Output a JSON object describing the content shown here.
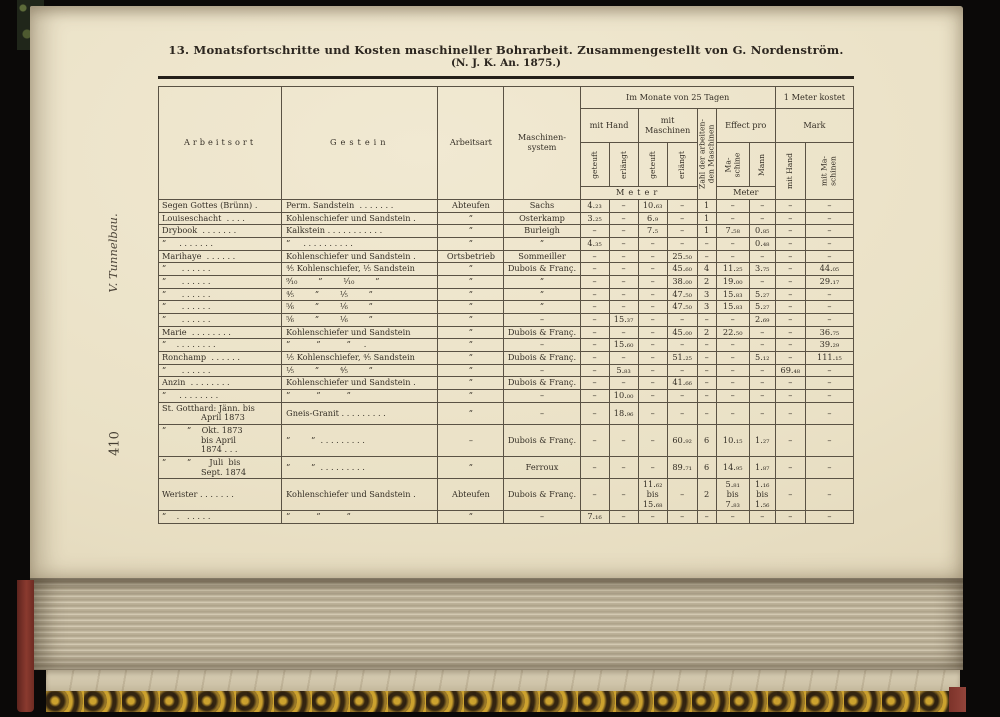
{
  "page": {
    "side_label": "V. Tunnelbau.",
    "page_number": "410",
    "title": "13. Monatsfortschritte und Kosten maschineller Bohrarbeit. Zusammengestellt von G. Nordenström.",
    "subtitle": "(N. J. K. An. 1875.)"
  },
  "colors": {
    "paper": "#ebe2c6",
    "ink": "#38322a",
    "cover_leather_red": "#82362c",
    "marble_gold": "#bb9130",
    "surround": "#0b0908"
  },
  "table": {
    "headers": {
      "arbeitsort": "Arbeitsort",
      "gestein": "Gestein",
      "arbeitsart": "Arbeitsart",
      "maschinensystem": "Maschinen-\nsystem",
      "group_monat": "Im Monate von 25 Tagen",
      "group_kostet": "1 Meter kostet",
      "mit_hand": "mit Hand",
      "mit_masch": "mit\nMaschinen",
      "geteuft": "geteuft",
      "erlaengt": "erlängt",
      "zahl": "Zahl der arbeiten-\nden Maschinen",
      "effect_pro": "Effect pro",
      "maschine": "Ma-\nschine",
      "mann": "Mann",
      "mark": "Mark",
      "cost_hand": "mit Hand",
      "cost_masch": "mit Ma-\nschinen",
      "meter_wide": "Meter",
      "meter_narrow": "Meter"
    },
    "rows": [
      [
        "Segen Gottes (Brünn) .",
        "Perm. Sandstein  . . . . . . .",
        "Abteufen",
        "Sachs",
        "4.₂₃",
        "–",
        "10.₆₃",
        "–",
        "1",
        "–",
        "–",
        "–",
        "–"
      ],
      [
        "Louiseschacht  . . . .",
        "Kohlenschiefer und Sandstein .",
        "”",
        "Osterkamp",
        "3.₂₅",
        "–",
        "6.₉",
        "–",
        "1",
        "–",
        "–",
        "–",
        "–"
      ],
      [
        "Drybook  . . . . . . .",
        "Kalkstein . . . . . . . . . . .",
        "”",
        "Burleigh",
        "–",
        "–",
        "7.₅",
        "–",
        "1",
        "7.₅₈",
        "0.₈₅",
        "–",
        "–"
      ],
      [
        "”     . . . . . . .",
        "”     . . . . . . . . . .",
        "”",
        "”",
        "4.₃₅",
        "–",
        "–",
        "–",
        "–",
        "–",
        "0.₄₈",
        "–",
        "–"
      ],
      [
        "Marihaye  . . . . . .",
        "Kohlenschiefer und Sandstein .",
        "Ortsbetrieb",
        "Sommeiller",
        "–",
        "–",
        "–",
        "25.₅₀",
        "–",
        "–",
        "–",
        "–",
        "–"
      ],
      [
        "”      . . . . . .",
        "⁴⁄₅ Kohlenschiefer, ¹⁄₅ Sandstein",
        "”",
        "Dubois & Franç.",
        "–",
        "–",
        "–",
        "45.₆₀",
        "4",
        "11.₂₅",
        "3.₇₅",
        "–",
        "44.₀₅"
      ],
      [
        "”      . . . . . .",
        "⁹⁄₁₀        ”        ¹⁄₁₀        ”",
        "”",
        "”",
        "–",
        "–",
        "–",
        "38.₀₀",
        "2",
        "19.₀₀",
        "–",
        "–",
        "29.₁₇"
      ],
      [
        "”      . . . . . .",
        "⁴⁄₅        ”        ¹⁄₅        ”",
        "”",
        "”",
        "–",
        "–",
        "–",
        "47.₅₀",
        "3",
        "15.₈₃",
        "5.₂₇",
        "–",
        "–"
      ],
      [
        "”      . . . . . .",
        "⁵⁄₆        ”        ¹⁄₆        ”",
        "”",
        "”",
        "–",
        "–",
        "–",
        "47.₅₀",
        "3",
        "15.₈₃",
        "5.₂₇",
        "–",
        "–"
      ],
      [
        "”      . . . . . .",
        "⁵⁄₆        ”        ¹⁄₆        ”",
        "”",
        "–",
        "–",
        "15.₃₇",
        "–",
        "–",
        "–",
        "–",
        "2.₆₉",
        "–",
        "–"
      ],
      [
        "Marie  . . . . . . . .",
        "Kohlenschiefer und Sandstein",
        "”",
        "Dubois & Franç.",
        "–",
        "–",
        "–",
        "45.₀₀",
        "2",
        "22.₅₀",
        "–",
        "–",
        "36.₇₅"
      ],
      [
        "”    . . . . . . . .",
        "”          ”          ”     .",
        "”",
        "–",
        "–",
        "15.₆₀",
        "–",
        "–",
        "–",
        "–",
        "–",
        "–",
        "39.₂₉"
      ],
      [
        "Ronchamp  . . . . . .",
        "¹⁄₅ Kohlenschiefer, ⁴⁄₅ Sandstein",
        "”",
        "Dubois & Franç.",
        "–",
        "–",
        "–",
        "51.₂₅",
        "–",
        "–",
        "5.₁₂",
        "–",
        "111.₁₅"
      ],
      [
        "”      . . . . . .",
        "¹⁄₅        ”        ⁴⁄₅        ”",
        "”",
        "–",
        "–",
        "5.₈₃",
        "–",
        "–",
        "–",
        "–",
        "–",
        "69.₄₈",
        "–"
      ],
      [
        "Anzin  . . . . . . . .",
        "Kohlenschiefer und Sandstein .",
        "”",
        "Dubois & Franç.",
        "–",
        "–",
        "–",
        "41.₆₆",
        "–",
        "–",
        "–",
        "–",
        "–"
      ],
      [
        "”     . . . . . . . .",
        "”          ”          ”",
        "”",
        "–",
        "–",
        "10.₀₀",
        "–",
        "–",
        "–",
        "–",
        "–",
        "–",
        "–"
      ],
      [
        "St. Gotthard: Jänn. bis\n               April 1873",
        "Gneis-Granit . . . . . . . . .",
        "”",
        "–",
        "–",
        "18.₉₆",
        "–",
        "–",
        "–",
        "–",
        "–",
        "–",
        "–"
      ],
      [
        "”        ”    Okt. 1873\n               bis April\n               1874 . . .",
        "”        ”  . . . . . . . . .",
        "–",
        "Dubois & Franç.",
        "–",
        "–",
        "–",
        "60.₉₂",
        "6",
        "10.₁₅",
        "1.₂₇",
        "–",
        "–"
      ],
      [
        "”        ”       Juli  bis\n               Sept. 1874",
        "”        ”  . . . . . . . . .",
        "”",
        "Ferroux",
        "–",
        "–",
        "–",
        "89.₇₁",
        "6",
        "14.₉₅",
        "1.₈₇",
        "–",
        "–"
      ],
      [
        "Werister . . . . . . .",
        "Kohlenschiefer und Sandstein .",
        "Abteufen",
        "Dubois & Franç.",
        "–",
        "–",
        "11.₆₂\nbis\n15.₆₈",
        "–",
        "2",
        "5.₈₁\nbis\n7.₈₃",
        "1.₁₆\nbis\n1.₅₆",
        "–",
        "–"
      ],
      [
        "”    .   . . . . .",
        "”          ”          ”",
        "”",
        "–",
        "7.₁₆",
        "–",
        "–",
        "–",
        "–",
        "–",
        "–",
        "–",
        "–"
      ]
    ]
  }
}
